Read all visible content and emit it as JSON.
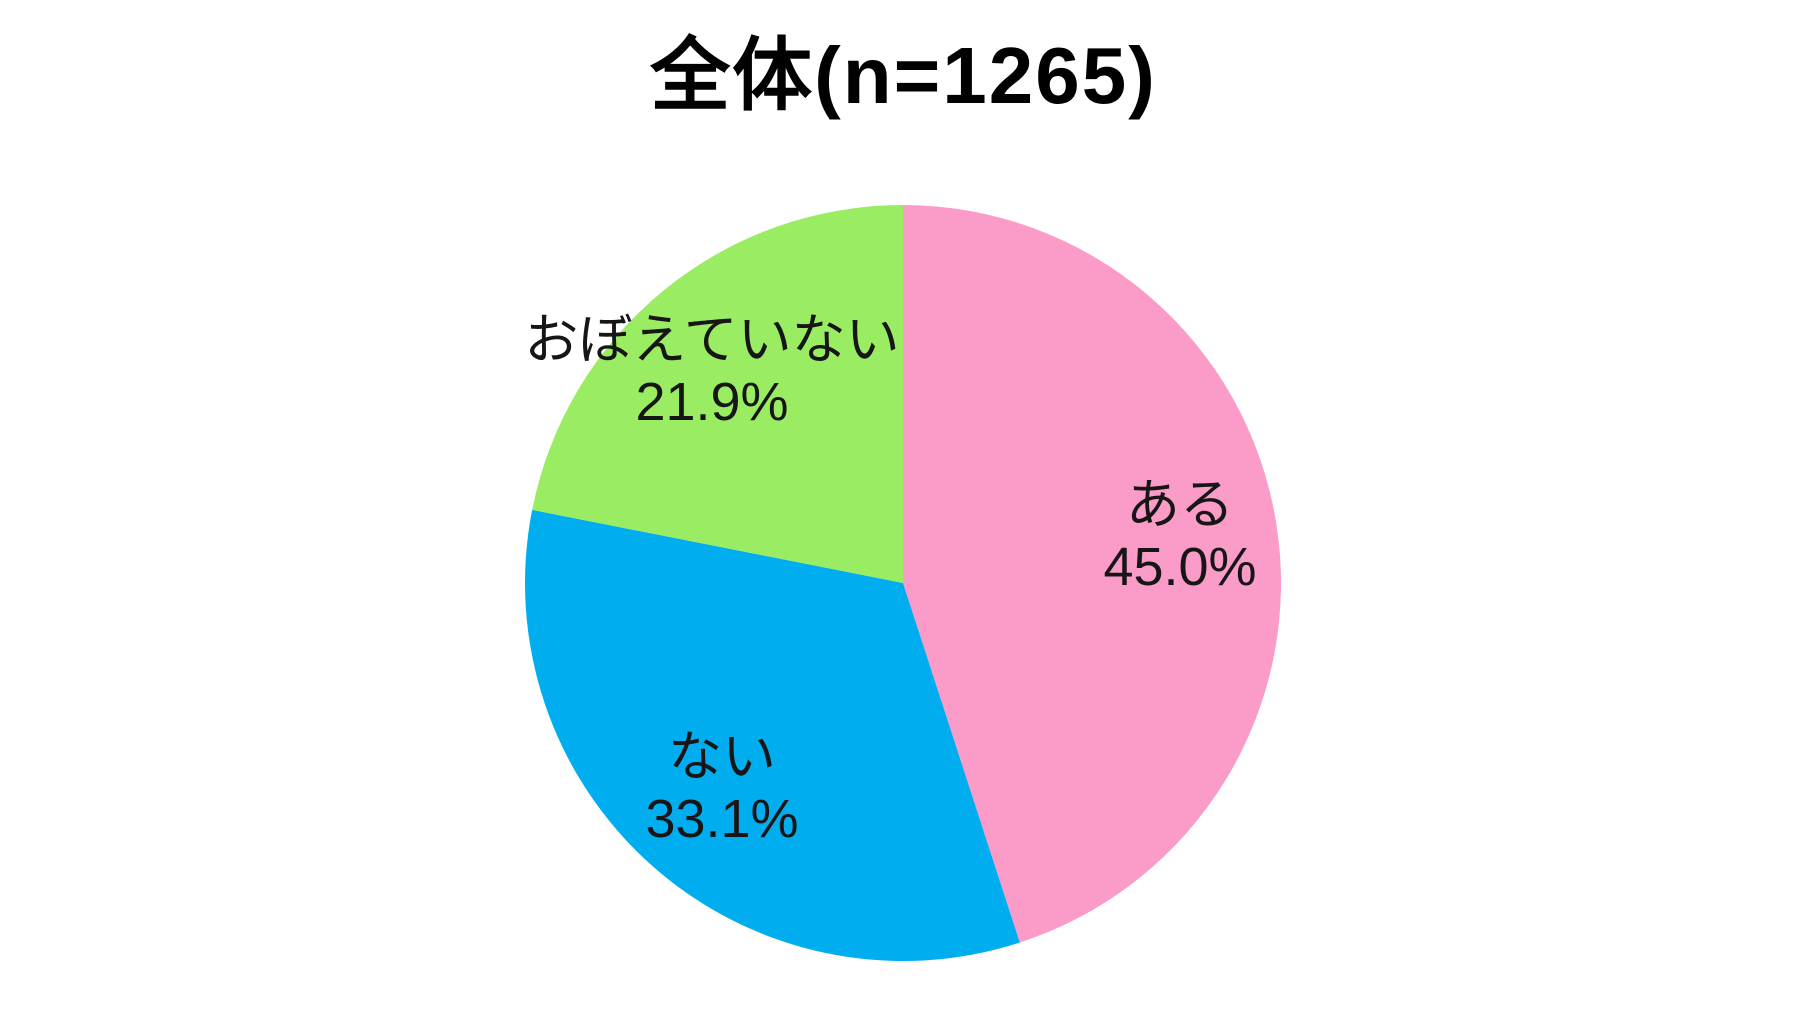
{
  "chart_data": {
    "type": "pie",
    "title": "全体(n=1265)",
    "start_angle_deg": -90,
    "direction": "clockwise",
    "legend_position": "none",
    "labels_on_chart": true,
    "background_color": "#ffffff",
    "slices": [
      {
        "label": "ある",
        "value": 45.0,
        "percent_label": "45.0%",
        "color": "#FA9BC8"
      },
      {
        "label": "ない",
        "value": 33.1,
        "percent_label": "33.1%",
        "color": "#00AEEF"
      },
      {
        "label": "おぼえていない",
        "value": 21.9,
        "percent_label": "21.9%",
        "color": "#9AEC63"
      }
    ]
  }
}
